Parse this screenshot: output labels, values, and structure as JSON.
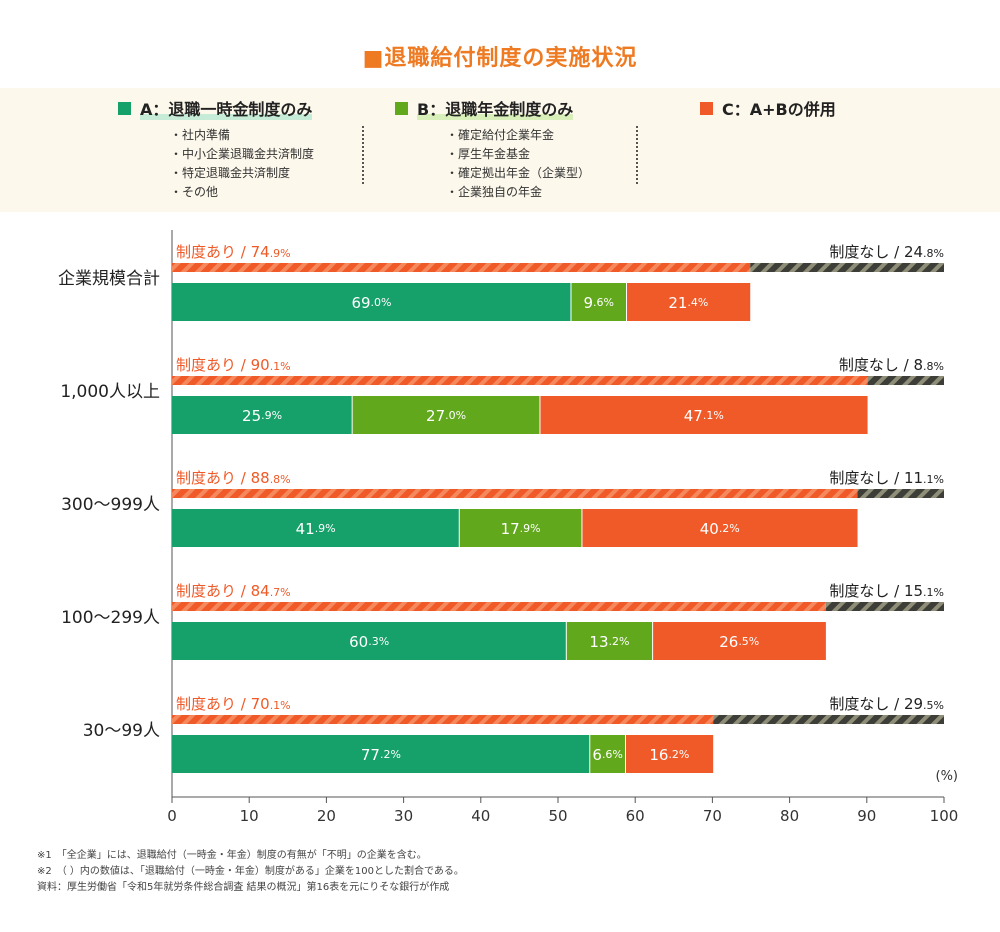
{
  "title": "■退職給付制度の実施状況",
  "legend": [
    {
      "key": "A",
      "label": "A：退職一時金制度のみ",
      "color": "#16a06a",
      "items": [
        "・社内準備",
        "・中小企業退職金共済制度",
        "・特定退職金共済制度",
        "・その他"
      ]
    },
    {
      "key": "B",
      "label": "B：退職年金制度のみ",
      "color": "#62a81c",
      "items": [
        "・確定給付企業年金",
        "・厚生年金基金",
        "・確定拠出年金（企業型）",
        "・企業独自の年金"
      ]
    },
    {
      "key": "C",
      "label": "C：A+Bの併用",
      "color": "#ef5a28",
      "items": []
    }
  ],
  "chart_data": {
    "type": "bar",
    "orientation": "horizontal",
    "stacked": true,
    "unit": "(%)",
    "xlim": [
      0,
      100
    ],
    "xticks": [
      0,
      10,
      20,
      30,
      40,
      50,
      60,
      70,
      80,
      90,
      100
    ],
    "categories": [
      "企業規模合計",
      "1,000人以上",
      "300〜999人",
      "100〜299人",
      "30〜99人"
    ],
    "has_prefix": "制度あり / ",
    "none_prefix": "制度なし / ",
    "has_system": [
      74.9,
      90.1,
      88.8,
      84.7,
      70.1
    ],
    "no_system": [
      24.8,
      8.8,
      11.1,
      15.1,
      29.5
    ],
    "series": [
      {
        "name": "A：退職一時金制度のみ",
        "values": [
          69.0,
          25.9,
          41.9,
          60.3,
          77.2
        ]
      },
      {
        "name": "B：退職年金制度のみ",
        "values": [
          9.6,
          27.0,
          17.9,
          13.2,
          6.6
        ]
      },
      {
        "name": "C：A+Bの併用",
        "values": [
          21.4,
          47.1,
          40.2,
          26.5,
          16.2
        ]
      }
    ],
    "colors": {
      "A": "#16a06a",
      "B": "#62a81c",
      "C": "#ef5a28",
      "none": "#4a4a42",
      "accent": "#ef5a28"
    }
  },
  "footnotes": [
    "※1　「全企業」には、退職給付（一時金・年金）制度の有無が「不明」の企業を含む。",
    "※2　（ ）内の数値は、「退職給付（一時金・年金）制度がある」企業を100とした割合である。",
    "資料：厚生労働省「令和5年就労条件総合調査 結果の概況」第16表を元にりそな銀行が作成"
  ]
}
